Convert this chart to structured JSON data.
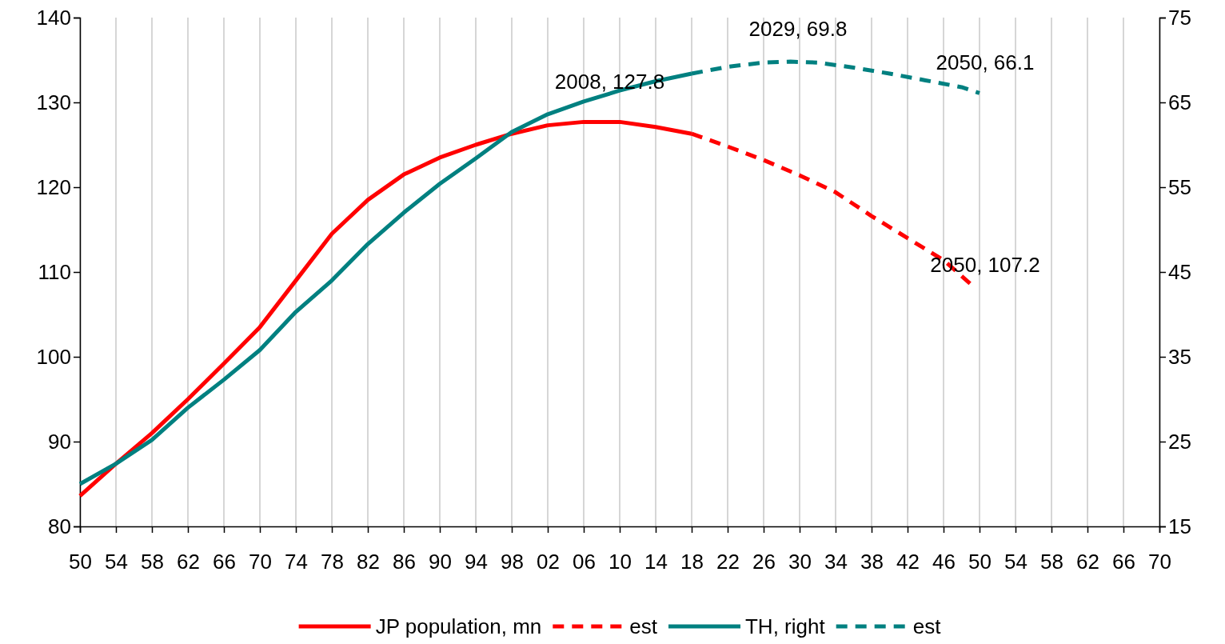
{
  "chart_data": {
    "type": "line",
    "xlim": [
      1950,
      2070
    ],
    "xticks": [
      {
        "value": 1950,
        "label": "50"
      },
      {
        "value": 1954,
        "label": "54"
      },
      {
        "value": 1958,
        "label": "58"
      },
      {
        "value": 1962,
        "label": "62"
      },
      {
        "value": 1966,
        "label": "66"
      },
      {
        "value": 1970,
        "label": "70"
      },
      {
        "value": 1974,
        "label": "74"
      },
      {
        "value": 1978,
        "label": "78"
      },
      {
        "value": 1982,
        "label": "82"
      },
      {
        "value": 1986,
        "label": "86"
      },
      {
        "value": 1990,
        "label": "90"
      },
      {
        "value": 1994,
        "label": "94"
      },
      {
        "value": 1998,
        "label": "98"
      },
      {
        "value": 2002,
        "label": "02"
      },
      {
        "value": 2006,
        "label": "06"
      },
      {
        "value": 2010,
        "label": "10"
      },
      {
        "value": 2014,
        "label": "14"
      },
      {
        "value": 2018,
        "label": "18"
      },
      {
        "value": 2022,
        "label": "22"
      },
      {
        "value": 2026,
        "label": "26"
      },
      {
        "value": 2030,
        "label": "30"
      },
      {
        "value": 2034,
        "label": "34"
      },
      {
        "value": 2038,
        "label": "38"
      },
      {
        "value": 2042,
        "label": "42"
      },
      {
        "value": 2046,
        "label": "46"
      },
      {
        "value": 2050,
        "label": "50"
      },
      {
        "value": 2054,
        "label": "54"
      },
      {
        "value": 2058,
        "label": "58"
      },
      {
        "value": 2062,
        "label": "62"
      },
      {
        "value": 2066,
        "label": "66"
      },
      {
        "value": 2070,
        "label": "70"
      }
    ],
    "ylim": [
      80,
      140
    ],
    "yticks": [
      80,
      90,
      100,
      110,
      120,
      130,
      140
    ],
    "y2lim": [
      15,
      75
    ],
    "y2ticks": [
      15,
      25,
      35,
      45,
      55,
      65,
      75
    ],
    "grid": "x",
    "legend": "bottom",
    "marker": "none",
    "series": [
      {
        "name": "JP population, mn",
        "color": "#ff0000",
        "line_style": "solid",
        "x": [
          1950,
          1954,
          1958,
          1962,
          1966,
          1970,
          1974,
          1978,
          1982,
          1986,
          1990,
          1994,
          1998,
          2002,
          2006,
          2010,
          2014,
          2018
        ],
        "values": [
          83.6,
          87.4,
          91,
          95,
          99.2,
          103.5,
          109,
          114.5,
          118.5,
          121.5,
          123.5,
          125,
          126.3,
          127.3,
          127.7,
          127.7,
          127.1,
          126.3
        ]
      },
      {
        "name": "est",
        "color": "#ff0000",
        "line_style": "dashed",
        "x": [
          2018,
          2022,
          2026,
          2030,
          2034,
          2038,
          2042,
          2046,
          2049
        ],
        "values": [
          126.3,
          124.8,
          123.2,
          121.4,
          119.4,
          116.6,
          114,
          111.4,
          108.6
        ]
      },
      {
        "name": "TH, right",
        "color": "#008080",
        "axis": "y2",
        "line_style": "solid",
        "x": [
          1950,
          1954,
          1958,
          1962,
          1966,
          1970,
          1974,
          1978,
          1982,
          1986,
          1990,
          1994,
          1998,
          2002,
          2006,
          2010,
          2014,
          2018
        ],
        "values": [
          20,
          22.4,
          25.2,
          29,
          32.3,
          35.8,
          40.3,
          44,
          48.3,
          52,
          55.4,
          58.4,
          61.5,
          63.6,
          65.1,
          66.4,
          67.5,
          68.4
        ]
      },
      {
        "name": "est",
        "color": "#008080",
        "axis": "y2",
        "line_style": "dashed",
        "x": [
          2018,
          2022,
          2026,
          2029,
          2032,
          2036,
          2040,
          2044,
          2048,
          2050
        ],
        "values": [
          68.4,
          69.2,
          69.7,
          69.8,
          69.7,
          69.1,
          68.4,
          67.6,
          66.8,
          66.1
        ]
      }
    ],
    "annotations": [
      {
        "text": "2008, 127.8",
        "x": 2008,
        "y": 127.8
      },
      "2029, 69.8",
      "2050, 66.1",
      "2050, 107.2"
    ]
  }
}
